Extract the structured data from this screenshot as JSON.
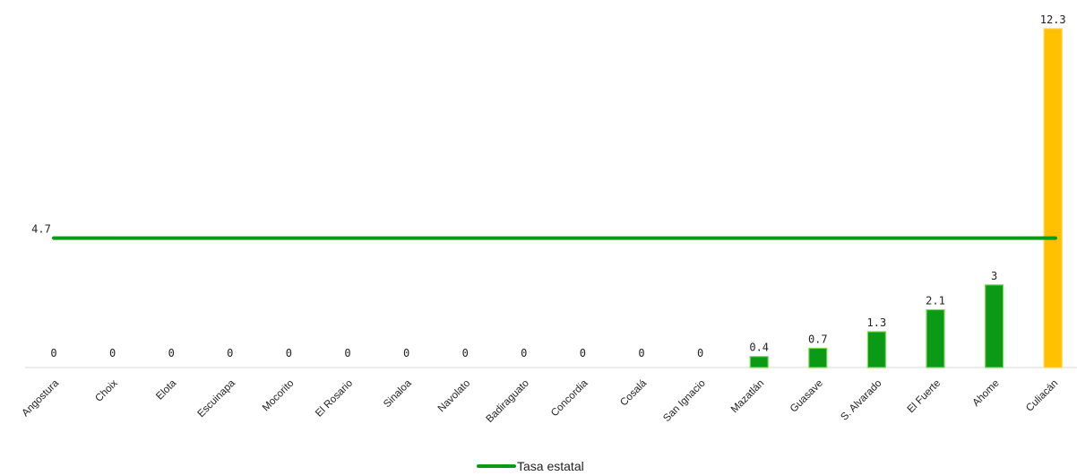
{
  "chart_data": {
    "type": "bar",
    "categories": [
      "Angostura",
      "Choix",
      "Elota",
      "Escuinapa",
      "Mocorito",
      "El Rosario",
      "Sinaloa",
      "Navolato",
      "Badiraguato",
      "Concordia",
      "Cosalá",
      "San Ignacio",
      "Mazatlán",
      "Guasave",
      "S. Alvarado",
      "El Fuerte",
      "Ahome",
      "Culiacán"
    ],
    "values": [
      0,
      0,
      0,
      0,
      0,
      0,
      0,
      0,
      0,
      0,
      0,
      0,
      0.4,
      0.7,
      1.3,
      2.1,
      3,
      12.3
    ],
    "data_labels": [
      "0",
      "0",
      "0",
      "0",
      "0",
      "0",
      "0",
      "0",
      "0",
      "0",
      "0",
      "0",
      "0.4",
      "0.7",
      "1.3",
      "2.1",
      "3",
      "12.3"
    ],
    "bar_colors": [
      "#0b9a16",
      "#0b9a16",
      "#0b9a16",
      "#0b9a16",
      "#0b9a16",
      "#0b9a16",
      "#0b9a16",
      "#0b9a16",
      "#0b9a16",
      "#0b9a16",
      "#0b9a16",
      "#0b9a16",
      "#0b9a16",
      "#0b9a16",
      "#0b9a16",
      "#0b9a16",
      "#0b9a16",
      "#ffc000"
    ],
    "reference_line": {
      "name": "Tasa estatal",
      "value": 4.7,
      "label": "4.7",
      "color": "#0b9a16"
    },
    "ylim": [
      0,
      12.3
    ],
    "grid": false,
    "legend_position": "bottom-center",
    "title": "",
    "xlabel": "",
    "ylabel": ""
  }
}
